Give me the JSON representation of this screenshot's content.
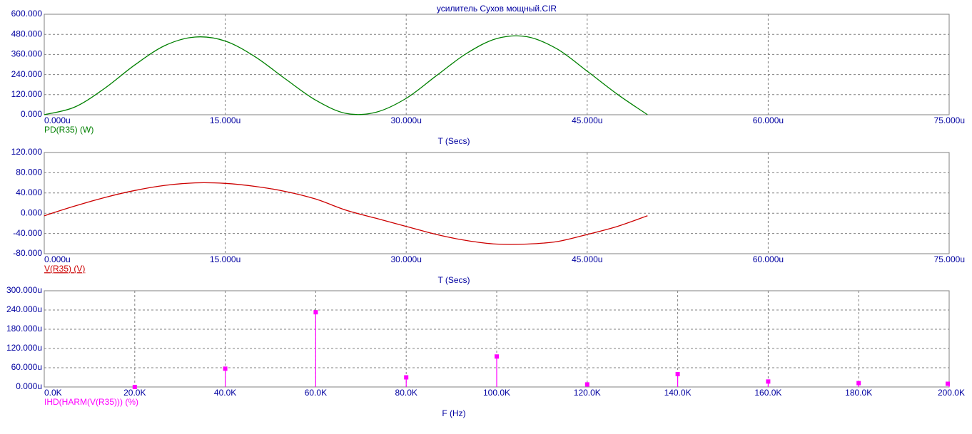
{
  "window": {
    "title": "усилитель Сухов мощный.CIR"
  },
  "colors": {
    "axis_text": "#0000a0",
    "grid": "#808080",
    "frame": "#808080",
    "power": "#008000",
    "voltage": "#cc0000",
    "harmonics": "#ff00ff"
  },
  "chart_data": [
    {
      "type": "line",
      "title": "усилитель Сухов мощный.CIR",
      "xlabel": "T (Secs)",
      "ylabel": "PD(R35) (W)",
      "x_ticks": [
        "0.000u",
        "15.000u",
        "30.000u",
        "45.000u",
        "60.000u",
        "75.000u"
      ],
      "y_ticks": [
        "0.000",
        "120.000",
        "240.000",
        "360.000",
        "480.000",
        "600.000"
      ],
      "xlim": [
        0,
        75
      ],
      "ylim": [
        0,
        600
      ],
      "x_unit": "us",
      "grid": true,
      "series": [
        {
          "name": "PD(R35) (W)",
          "color": "#008000",
          "x": [
            0,
            2.5,
            5,
            7.5,
            10,
            12.5,
            15,
            17.5,
            20,
            22.5,
            25,
            27.5,
            30,
            32.5,
            35,
            37.5,
            40,
            42.5,
            45,
            47.5,
            50
          ],
          "y": [
            0,
            45,
            157,
            297,
            413,
            464,
            440,
            345,
            213,
            87,
            8,
            15,
            98,
            233,
            366,
            455,
            466,
            393,
            260,
            122,
            0
          ]
        }
      ]
    },
    {
      "type": "line",
      "xlabel": "T (Secs)",
      "ylabel": "V(R35) (V)",
      "x_ticks": [
        "0.000u",
        "15.000u",
        "30.000u",
        "45.000u",
        "60.000u",
        "75.000u"
      ],
      "y_ticks": [
        "-80.000",
        "-40.000",
        "0.000",
        "40.000",
        "80.000",
        "120.000"
      ],
      "xlim": [
        0,
        75
      ],
      "ylim": [
        -80,
        120
      ],
      "x_unit": "us",
      "grid": true,
      "series": [
        {
          "name": "V(R35) (V)",
          "color": "#cc0000",
          "x": [
            0,
            2.5,
            5,
            7.5,
            10,
            12.5,
            15,
            17.5,
            20,
            22.5,
            25,
            27.5,
            30,
            32.5,
            35,
            37.5,
            40,
            42.5,
            45,
            47.5,
            50
          ],
          "y": [
            -5,
            14,
            31,
            45,
            55,
            60,
            59,
            53,
            43,
            28,
            6,
            -10,
            -26,
            -42,
            -54,
            -61,
            -61,
            -56,
            -42,
            -26,
            -5
          ]
        }
      ]
    },
    {
      "type": "bar",
      "xlabel": "F (Hz)",
      "ylabel": "IHD(HARM(V(R35))) (%)",
      "x_ticks": [
        "0.0K",
        "20.0K",
        "40.0K",
        "60.0K",
        "80.0K",
        "100.0K",
        "120.0K",
        "140.0K",
        "160.0K",
        "180.0K",
        "200.0K"
      ],
      "y_ticks": [
        "0.000u",
        "60.000u",
        "120.000u",
        "180.000u",
        "240.000u",
        "300.000u"
      ],
      "xlim": [
        0,
        200
      ],
      "ylim": [
        0,
        300
      ],
      "x_unit": "kHz",
      "y_unit": "u%",
      "grid": true,
      "series": [
        {
          "name": "IHD(HARM(V(R35))) (%)",
          "color": "#ff00ff",
          "x": [
            20,
            40,
            60,
            80,
            100,
            120,
            140,
            160,
            180,
            200
          ],
          "y": [
            0,
            57,
            233,
            30,
            95,
            8,
            40,
            17,
            12,
            10
          ]
        }
      ]
    }
  ]
}
